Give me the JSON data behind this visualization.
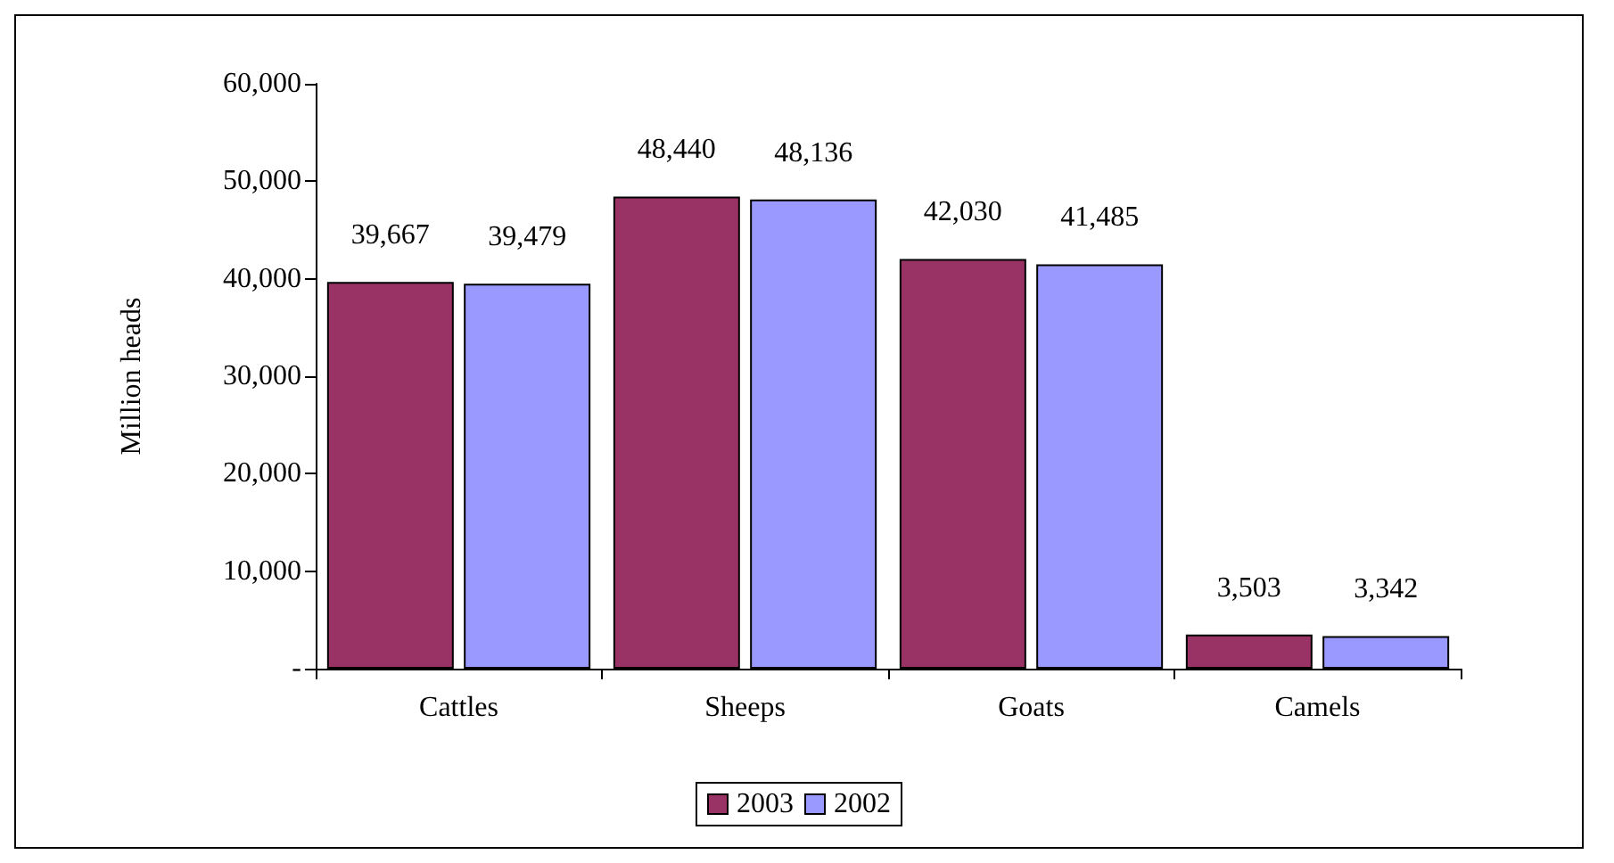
{
  "chart_data": {
    "type": "bar",
    "ylabel": "Million heads",
    "categories": [
      "Cattles",
      "Sheeps",
      "Goats",
      "Camels"
    ],
    "series": [
      {
        "name": "2003",
        "color": "#993366",
        "values": [
          39667,
          48440,
          42030,
          3503
        ],
        "value_labels": [
          "39,667",
          "48,440",
          "42,030",
          "3,503"
        ]
      },
      {
        "name": "2002",
        "color": "#9999ff",
        "values": [
          39479,
          48136,
          41485,
          3342
        ],
        "value_labels": [
          "39,479",
          "48,136",
          "41,485",
          "3,342"
        ]
      }
    ],
    "ylim": [
      0,
      60000
    ],
    "yticks": [
      {
        "value": 0,
        "label": "-"
      },
      {
        "value": 10000,
        "label": "10,000"
      },
      {
        "value": 20000,
        "label": "20,000"
      },
      {
        "value": 30000,
        "label": "30,000"
      },
      {
        "value": 40000,
        "label": "40,000"
      },
      {
        "value": 50000,
        "label": "50,000"
      },
      {
        "value": 60000,
        "label": "60,000"
      }
    ],
    "grid": false,
    "legend": "bottom"
  }
}
